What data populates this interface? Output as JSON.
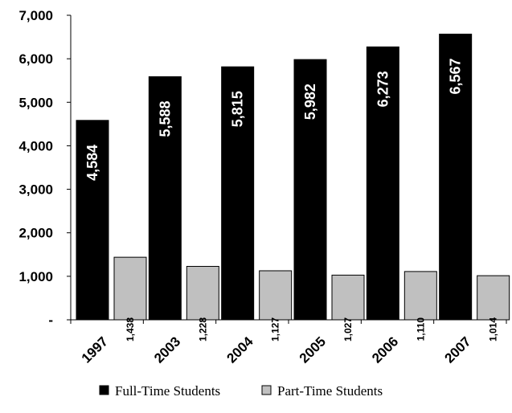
{
  "chart_data": {
    "type": "bar",
    "title": "",
    "xlabel": "",
    "ylabel": "",
    "categories": [
      "1997",
      "2003",
      "2004",
      "2005",
      "2006",
      "2007"
    ],
    "series": [
      {
        "name": "Full-Time Students",
        "color": "#000000",
        "values": [
          4584,
          5588,
          5815,
          5982,
          6273,
          6567
        ],
        "labels": [
          "4,584",
          "5,588",
          "5,815",
          "5,982",
          "6,273",
          "6,567"
        ]
      },
      {
        "name": "Part-Time Students",
        "color": "#c0c0c0",
        "values": [
          1438,
          1228,
          1127,
          1027,
          1110,
          1014
        ],
        "labels": [
          "1,438",
          "1,228",
          "1,127",
          "1,027",
          "1,110",
          "1,014"
        ]
      }
    ],
    "ylim": [
      0,
      7000
    ],
    "yticks": [
      0,
      1000,
      2000,
      3000,
      4000,
      5000,
      6000,
      7000
    ],
    "ytick_labels": [
      "-",
      "1,000",
      "2,000",
      "3,000",
      "4,000",
      "5,000",
      "6,000",
      "7,000"
    ],
    "grid": false,
    "legend_position": "bottom"
  }
}
